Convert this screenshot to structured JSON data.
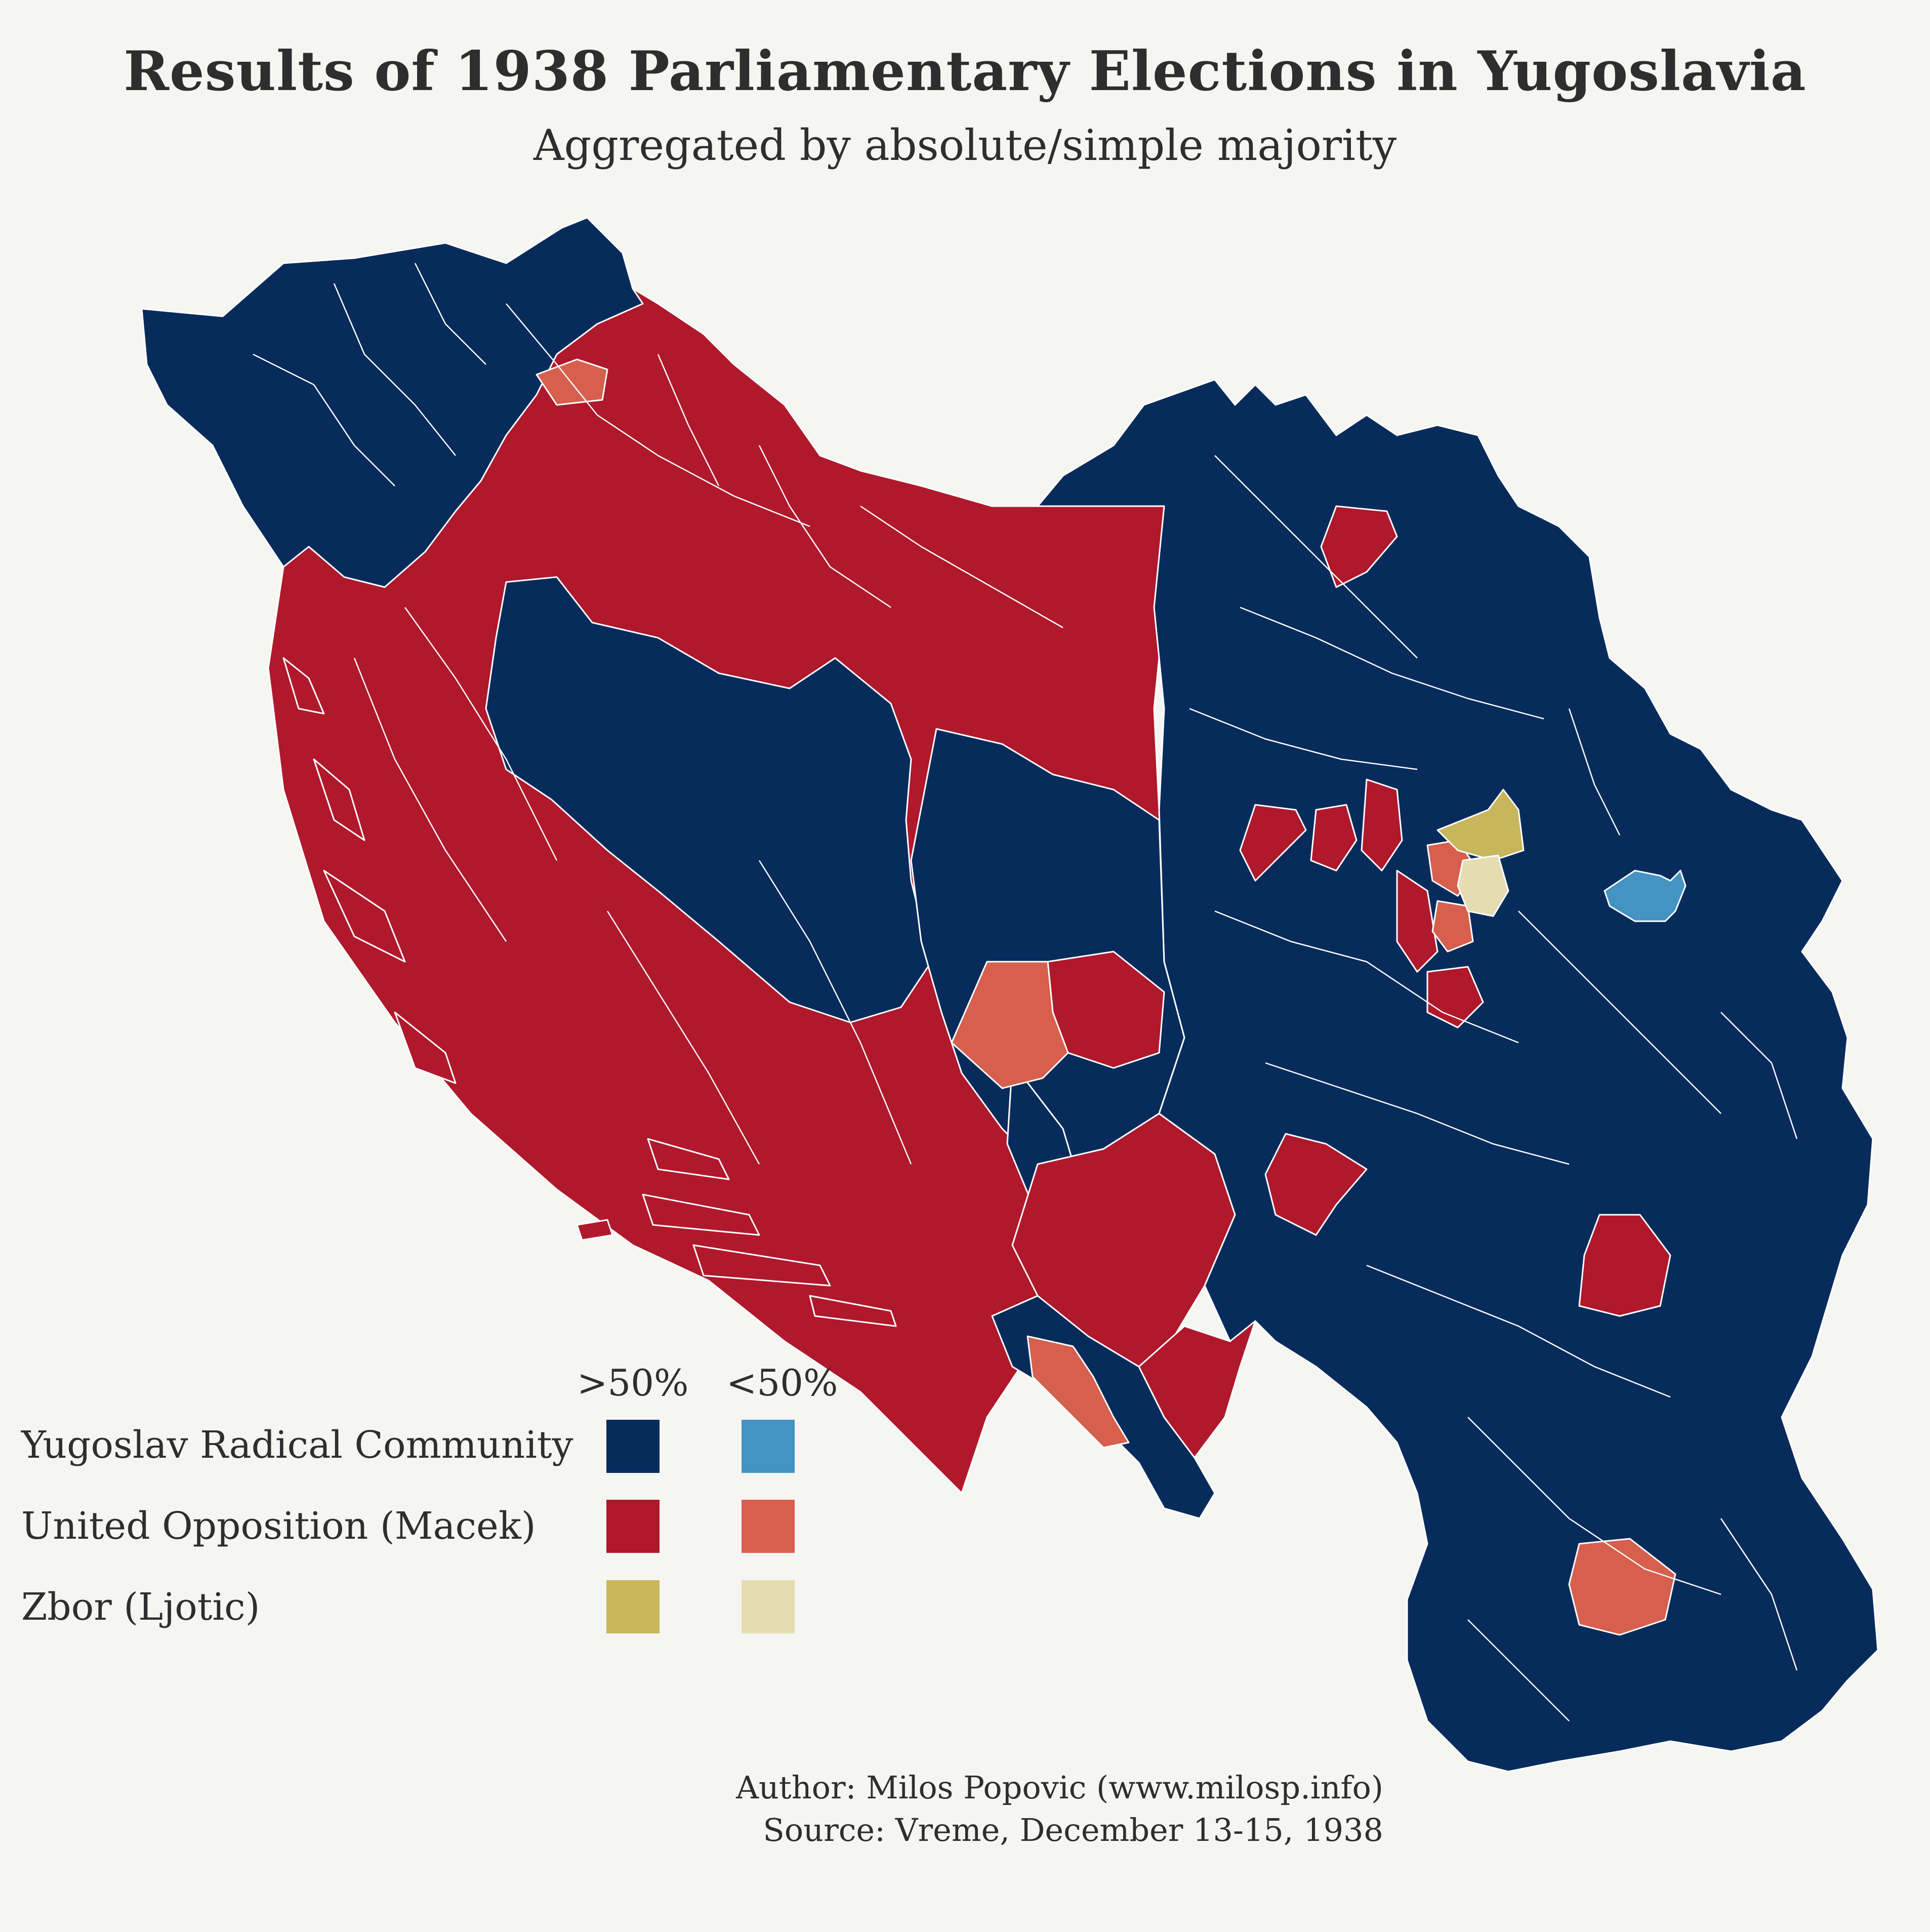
{
  "title": "Results of 1938 Parliamentary Elections in Yugoslavia",
  "subtitle": "Aggregated by absolute/simple majority",
  "legend": {
    "col_headers": [
      ">50%",
      "<50%"
    ],
    "rows": [
      {
        "label": "Yugoslav Radical Community",
        "majority_color": "#072c5c",
        "plurality_color": "#4393c3"
      },
      {
        "label": "United Opposition (Macek)",
        "majority_color": "#b0182c",
        "plurality_color": "#d6604d"
      },
      {
        "label": "Zbor (Ljotic)",
        "majority_color": "#c7b65b",
        "plurality_color": "#e6dcb2"
      }
    ]
  },
  "map": {
    "background": "#f5f5f2",
    "border_color": "#ffffff"
  },
  "credits": {
    "author": "Author: Milos Popovic (www.milosp.info)",
    "source": "Source: Vreme, December 13-15, 1938"
  }
}
